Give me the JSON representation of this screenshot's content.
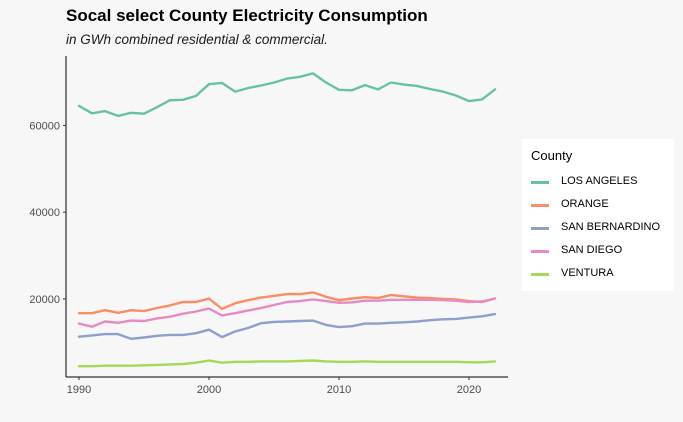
{
  "chart_data": {
    "type": "line",
    "title": "Socal select County Electricity Consumption",
    "subtitle": "in GWh combined residential & commercial.",
    "xlabel": "",
    "ylabel": "",
    "xlim": [
      1989,
      2023
    ],
    "ylim": [
      2000,
      76000
    ],
    "x_ticks": [
      1990,
      2000,
      2010,
      2020
    ],
    "y_ticks": [
      20000,
      40000,
      60000
    ],
    "grid": false,
    "legend_title": "County",
    "legend_position": "right",
    "x": [
      1990,
      1991,
      1992,
      1993,
      1994,
      1995,
      1996,
      1997,
      1998,
      1999,
      2000,
      2001,
      2002,
      2003,
      2004,
      2005,
      2006,
      2007,
      2008,
      2009,
      2010,
      2011,
      2012,
      2013,
      2014,
      2015,
      2016,
      2017,
      2018,
      2019,
      2020,
      2021,
      2022
    ],
    "series": [
      {
        "name": "LOS ANGELES",
        "color": "#66c2a5",
        "values": [
          64500,
          62800,
          63300,
          62200,
          62900,
          62700,
          64200,
          65800,
          65900,
          66800,
          69500,
          69800,
          67800,
          68600,
          69200,
          69900,
          70800,
          71200,
          72000,
          69900,
          68200,
          68100,
          69300,
          68300,
          69900,
          69400,
          69100,
          68400,
          67800,
          66900,
          65600,
          66000,
          68300
        ]
      },
      {
        "name": "ORANGE",
        "color": "#fc8d62",
        "values": [
          16700,
          16700,
          17400,
          16800,
          17400,
          17200,
          17900,
          18500,
          19300,
          19300,
          20100,
          17700,
          19000,
          19700,
          20300,
          20700,
          21100,
          21100,
          21500,
          20500,
          19700,
          20100,
          20400,
          20200,
          20900,
          20600,
          20300,
          20200,
          20000,
          19900,
          19500,
          19300,
          20100
        ]
      },
      {
        "name": "SAN BERNARDINO",
        "color": "#8da0cb",
        "values": [
          11300,
          11600,
          11900,
          11900,
          10800,
          11100,
          11500,
          11700,
          11700,
          12100,
          12900,
          11200,
          12500,
          13300,
          14400,
          14700,
          14800,
          14900,
          15000,
          14000,
          13500,
          13700,
          14300,
          14300,
          14500,
          14600,
          14800,
          15100,
          15300,
          15400,
          15700,
          16000,
          16500
        ]
      },
      {
        "name": "SAN DIEGO",
        "color": "#e78ac3",
        "values": [
          14300,
          13600,
          14800,
          14500,
          15000,
          14900,
          15500,
          15900,
          16600,
          17100,
          17800,
          16200,
          16700,
          17300,
          17900,
          18600,
          19300,
          19500,
          19900,
          19500,
          19100,
          19200,
          19600,
          19600,
          19800,
          19800,
          19800,
          19800,
          19700,
          19600,
          19300,
          19400,
          20100
        ]
      },
      {
        "name": "VENTURA",
        "color": "#a6d854",
        "values": [
          4500,
          4500,
          4600,
          4600,
          4600,
          4700,
          4800,
          4900,
          5000,
          5300,
          5800,
          5300,
          5500,
          5500,
          5600,
          5600,
          5600,
          5700,
          5800,
          5600,
          5500,
          5500,
          5600,
          5500,
          5500,
          5500,
          5500,
          5500,
          5500,
          5500,
          5400,
          5400,
          5600
        ]
      }
    ]
  }
}
